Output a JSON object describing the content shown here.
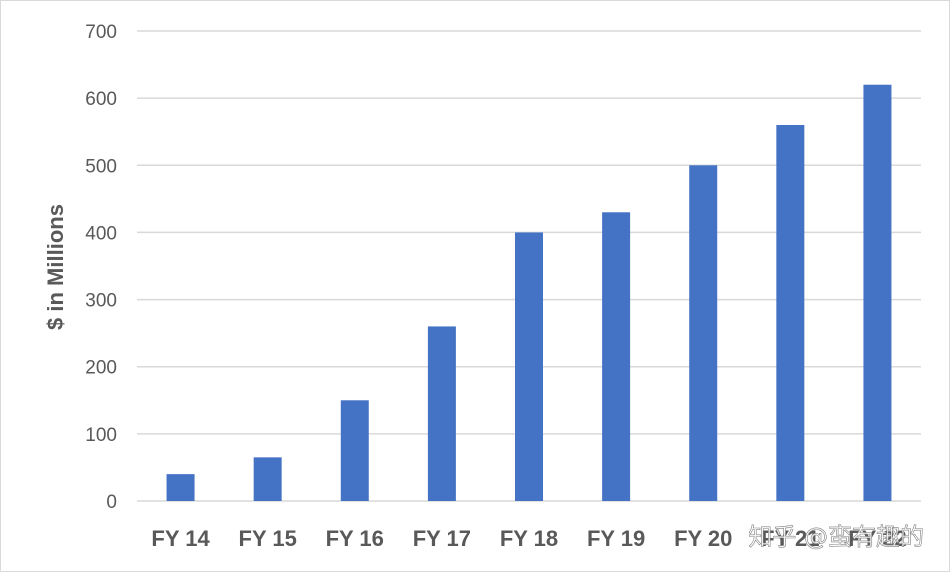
{
  "chart_data": {
    "type": "bar",
    "categories": [
      "FY 14",
      "FY 15",
      "FY 16",
      "FY 17",
      "FY 18",
      "FY 19",
      "FY 20",
      "FY 21",
      "FY 22"
    ],
    "values": [
      40,
      65,
      150,
      260,
      400,
      430,
      500,
      560,
      620
    ],
    "title": "",
    "xlabel": "",
    "ylabel": "$ in Millions",
    "ylim": [
      0,
      700
    ],
    "yticks": [
      0,
      100,
      200,
      300,
      400,
      500,
      600,
      700
    ],
    "grid": true,
    "bar_color": "#4472c4",
    "grid_color": "#d9d9d9"
  },
  "watermark": {
    "text": "知乎 @蛮有趣的"
  }
}
